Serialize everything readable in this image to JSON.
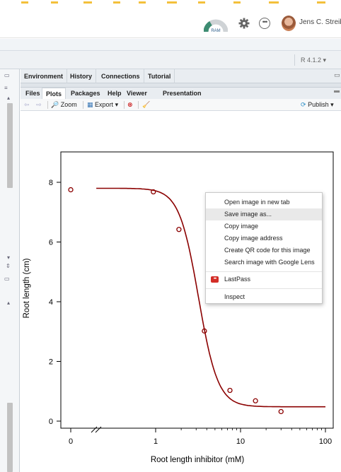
{
  "header": {
    "ram_label": "RAM",
    "user_name": "Jens C. Streibig"
  },
  "console_bar": {
    "r_version": "R 4.1.2"
  },
  "env_tabs": [
    "Environment",
    "History",
    "Connections",
    "Tutorial"
  ],
  "file_tabs": [
    {
      "label": "Files",
      "active": false
    },
    {
      "label": "Plots",
      "active": true
    },
    {
      "label": "Packages",
      "active": false
    },
    {
      "label": "Help",
      "active": false
    },
    {
      "label": "Viewer",
      "active": false
    },
    {
      "label": "Presentation",
      "active": false
    }
  ],
  "plot_toolbar": {
    "zoom": "Zoom",
    "export": "Export",
    "publish": "Publish"
  },
  "context_menu": {
    "items": [
      "Open image in new tab",
      "Save image as...",
      "Copy image",
      "Copy image address",
      "Create QR code for this image",
      "Search image with Google Lens",
      "LastPass",
      "Inspect"
    ],
    "highlighted": "Save image as...",
    "lastpass_icon": "•••"
  },
  "chart_data": {
    "type": "scatter",
    "xlabel": "Root length inhibitor (mM)",
    "ylabel": "Root length (cm)",
    "x_scale": "log",
    "x_ticks": [
      "0",
      "1",
      "10",
      "100"
    ],
    "y_ticks": [
      "0",
      "2",
      "4",
      "6",
      "8"
    ],
    "ylim": [
      0,
      8.5
    ],
    "points": [
      {
        "x": 0,
        "y": 7.75
      },
      {
        "x": 0.94,
        "y": 7.68
      },
      {
        "x": 1.88,
        "y": 6.42
      },
      {
        "x": 3.75,
        "y": 3.02
      },
      {
        "x": 7.5,
        "y": 1.03
      },
      {
        "x": 15,
        "y": 0.68
      },
      {
        "x": 30,
        "y": 0.32
      }
    ],
    "fitted_curve": {
      "model": "log-logistic",
      "upper": 7.8,
      "lower": 0.48,
      "ed50": 3.2,
      "slope": 3.8,
      "x_range": [
        0.2,
        100
      ]
    },
    "color": "#8b0000"
  }
}
